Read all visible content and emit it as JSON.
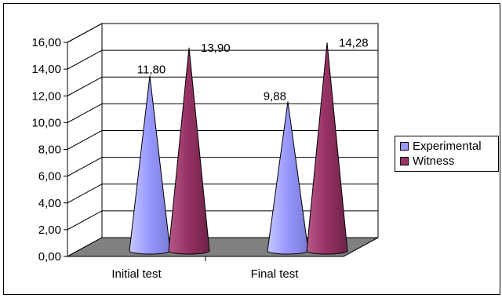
{
  "chart_data": {
    "type": "bar",
    "bar_shape": "cone",
    "view": "3d",
    "categories": [
      "Initial test",
      "Final test"
    ],
    "series": [
      {
        "name": "Experimental",
        "values": [
          11.8,
          9.88
        ],
        "labels": [
          "11,80",
          "9,88"
        ],
        "color": "#9999ff"
      },
      {
        "name": "Witness",
        "values": [
          13.9,
          14.28
        ],
        "labels": [
          "13,90",
          "14,28"
        ],
        "color": "#993366"
      }
    ],
    "y_ticks": [
      "0,00",
      "2,00",
      "4,00",
      "6,00",
      "8,00",
      "10,00",
      "12,00",
      "14,00",
      "16,00"
    ],
    "ylim": [
      0,
      16
    ],
    "y_step": 2,
    "grid": true,
    "legend_position": "right",
    "floor_color": "#808080"
  }
}
